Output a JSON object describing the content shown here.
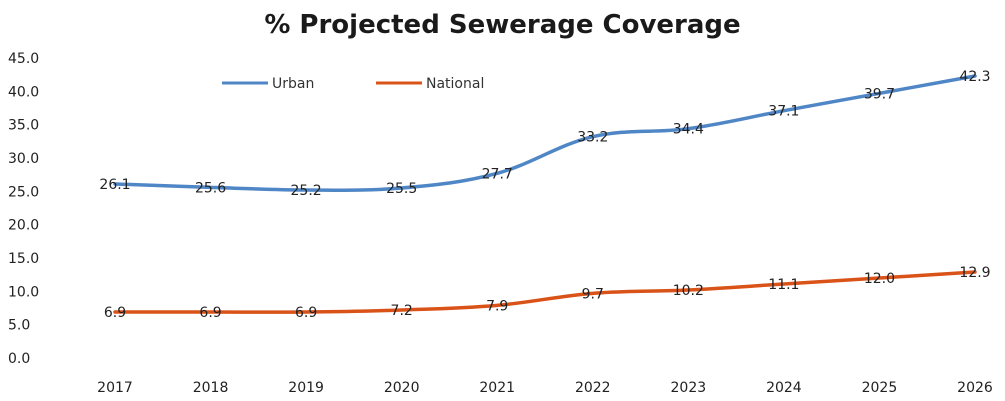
{
  "chart_data": {
    "type": "line",
    "title": "% Projected Sewerage Coverage",
    "xlabel": "",
    "ylabel": "",
    "categories": [
      "2017",
      "2018",
      "2019",
      "2020",
      "2021",
      "2022",
      "2023",
      "2024",
      "2025",
      "2026"
    ],
    "ylim": [
      0,
      45
    ],
    "yticks": [
      "0.0",
      "5.0",
      "10.0",
      "15.0",
      "20.0",
      "25.0",
      "30.0",
      "35.0",
      "40.0",
      "45.0"
    ],
    "grid": false,
    "legend_position": "top-left",
    "series": [
      {
        "name": "Urban",
        "color": "#4f86c6",
        "values": [
          26.1,
          25.6,
          25.2,
          25.5,
          27.7,
          33.2,
          34.4,
          37.1,
          39.7,
          42.3
        ]
      },
      {
        "name": "National",
        "color": "#d95319",
        "values": [
          6.9,
          6.9,
          6.9,
          7.2,
          7.9,
          9.7,
          10.2,
          11.1,
          12.0,
          12.9
        ]
      }
    ]
  }
}
